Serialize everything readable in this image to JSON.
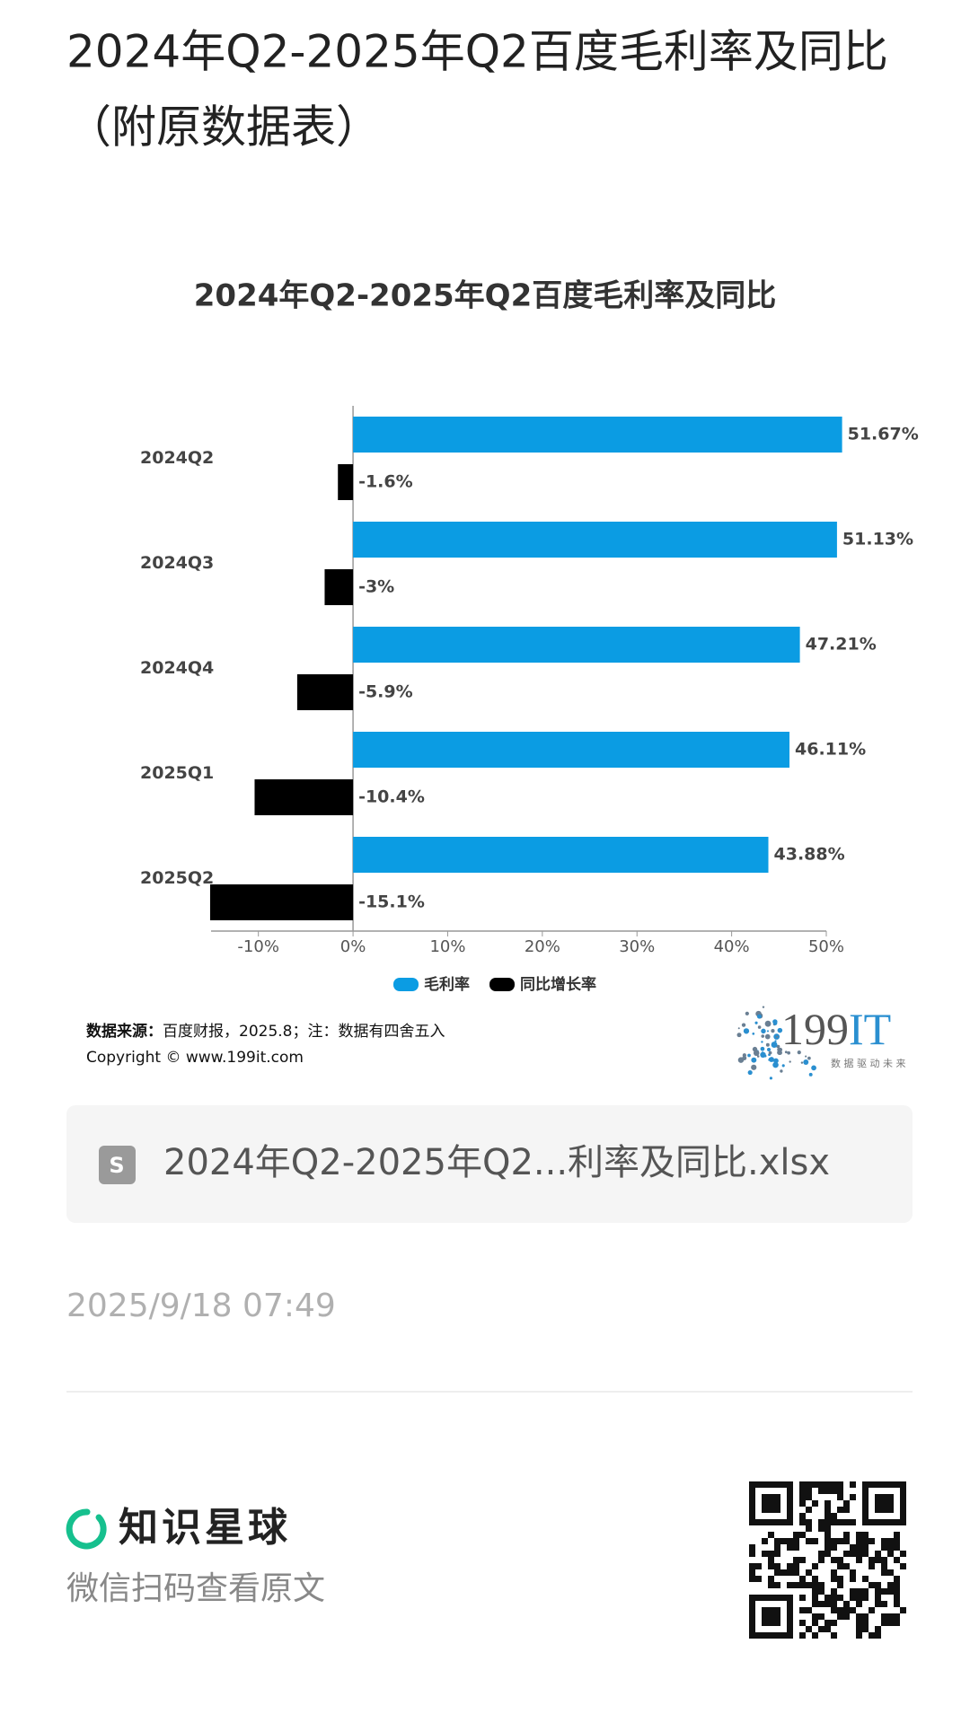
{
  "header": {
    "title_lines": [
      "2024年Q2-2025年Q2百度毛利率及同比",
      "（附原数据表）"
    ]
  },
  "chart_data": {
    "type": "hbar",
    "title": "2024年Q2-2025年Q2百度毛利率及同比",
    "categories": [
      "2024Q2",
      "2024Q3",
      "2024Q4",
      "2025Q1",
      "2025Q2"
    ],
    "series": [
      {
        "name": "毛利率",
        "color": "#0b9ce3",
        "values": [
          51.67,
          51.13,
          47.21,
          46.11,
          43.88
        ],
        "value_labels": [
          "51.67%",
          "51.13%",
          "47.21%",
          "46.11%",
          "43.88%"
        ]
      },
      {
        "name": "同比增长率",
        "color": "#000000",
        "values": [
          -1.6,
          -3,
          -5.9,
          -10.4,
          -15.1
        ],
        "value_labels": [
          "-1.6%",
          "-3%",
          "-5.9%",
          "-10.4%",
          "-15.1%"
        ]
      }
    ],
    "xlim": [
      -15,
      50
    ],
    "xticks": [
      {
        "value": -10,
        "label": "-10%"
      },
      {
        "value": 0,
        "label": "0%"
      },
      {
        "value": 10,
        "label": "10%"
      },
      {
        "value": 20,
        "label": "20%"
      },
      {
        "value": 30,
        "label": "30%"
      },
      {
        "value": 40,
        "label": "40%"
      },
      {
        "value": 50,
        "label": "50%"
      }
    ],
    "grid": false,
    "legend": "bottom"
  },
  "chart_footer": {
    "source_label": "数据来源：",
    "source_text": "百度财报，2025.8；注：数据有四舍五入",
    "copyright": "Copyright ©  www.199it.com",
    "logo_parts": [
      "199",
      "IT"
    ],
    "logo_slogan": "数 据 驱 动 未 来"
  },
  "file": {
    "name": "2024年Q2-2025年Q2...利率及同比.xlsx"
  },
  "timestamp": "2025/9/18 07:49",
  "footer": {
    "brand": "知识星球",
    "hint": "微信扫码查看原文"
  }
}
